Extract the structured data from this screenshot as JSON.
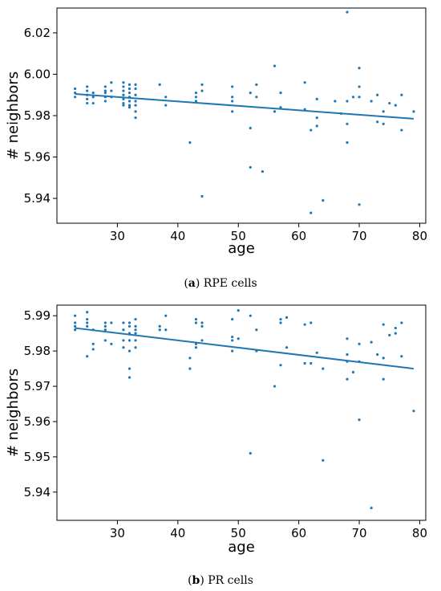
{
  "chart_data": [
    {
      "type": "scatter",
      "caption_tag": "a",
      "caption_text": "RPE cells",
      "xlabel": "age",
      "ylabel": "# neighbors",
      "xlim": [
        20,
        81
      ],
      "ylim": [
        5.928,
        6.032
      ],
      "xticks": [
        30,
        40,
        50,
        60,
        70,
        80
      ],
      "yticks": [
        5.94,
        5.96,
        5.98,
        6.0,
        6.02
      ],
      "ytick_labels": [
        "5.94",
        "5.96",
        "5.98",
        "6.00",
        "6.02"
      ],
      "color": "#1f77b4",
      "regression": {
        "x": [
          23,
          79
        ],
        "y": [
          5.9905,
          5.9785
        ]
      },
      "points": [
        [
          23,
          5.993
        ],
        [
          23,
          5.991
        ],
        [
          23,
          5.989
        ],
        [
          25,
          5.994
        ],
        [
          25,
          5.992
        ],
        [
          25,
          5.99
        ],
        [
          25,
          5.988
        ],
        [
          25,
          5.986
        ],
        [
          26,
          5.991
        ],
        [
          26,
          5.989
        ],
        [
          26,
          5.986
        ],
        [
          28,
          5.994
        ],
        [
          28,
          5.992
        ],
        [
          28,
          5.991
        ],
        [
          28,
          5.989
        ],
        [
          28,
          5.987
        ],
        [
          29,
          5.996
        ],
        [
          29,
          5.992
        ],
        [
          29,
          5.989
        ],
        [
          31,
          5.996
        ],
        [
          31,
          5.994
        ],
        [
          31,
          5.992
        ],
        [
          31,
          5.99
        ],
        [
          31,
          5.988
        ],
        [
          31,
          5.986
        ],
        [
          31,
          5.985
        ],
        [
          32,
          5.995
        ],
        [
          32,
          5.993
        ],
        [
          32,
          5.991
        ],
        [
          32,
          5.989
        ],
        [
          32,
          5.987
        ],
        [
          32,
          5.985
        ],
        [
          32,
          5.984
        ],
        [
          33,
          5.995
        ],
        [
          33,
          5.993
        ],
        [
          33,
          5.99
        ],
        [
          33,
          5.987
        ],
        [
          33,
          5.985
        ],
        [
          33,
          5.982
        ],
        [
          33,
          5.979
        ],
        [
          37,
          5.995
        ],
        [
          38,
          5.989
        ],
        [
          38,
          5.985
        ],
        [
          42,
          5.967
        ],
        [
          43,
          5.991
        ],
        [
          43,
          5.989
        ],
        [
          43,
          5.987
        ],
        [
          44,
          5.995
        ],
        [
          44,
          5.992
        ],
        [
          44,
          5.941
        ],
        [
          49,
          5.994
        ],
        [
          49,
          5.989
        ],
        [
          49,
          5.987
        ],
        [
          49,
          5.982
        ],
        [
          52,
          5.991
        ],
        [
          52,
          5.974
        ],
        [
          52,
          5.955
        ],
        [
          53,
          5.995
        ],
        [
          53,
          5.989
        ],
        [
          54,
          5.953
        ],
        [
          56,
          6.004
        ],
        [
          56,
          5.982
        ],
        [
          57,
          5.991
        ],
        [
          57,
          5.984
        ],
        [
          61,
          5.996
        ],
        [
          61,
          5.983
        ],
        [
          62,
          5.973
        ],
        [
          62,
          5.933
        ],
        [
          63,
          5.988
        ],
        [
          63,
          5.979
        ],
        [
          63,
          5.975
        ],
        [
          64,
          5.939
        ],
        [
          66,
          5.987
        ],
        [
          67,
          5.981
        ],
        [
          68,
          6.03
        ],
        [
          68,
          5.987
        ],
        [
          68,
          5.976
        ],
        [
          68,
          5.967
        ],
        [
          69,
          5.989
        ],
        [
          70,
          6.003
        ],
        [
          70,
          5.994
        ],
        [
          70,
          5.989
        ],
        [
          70,
          5.937
        ],
        [
          72,
          5.987
        ],
        [
          73,
          5.99
        ],
        [
          73,
          5.977
        ],
        [
          74,
          5.982
        ],
        [
          74,
          5.976
        ],
        [
          75,
          5.986
        ],
        [
          76,
          5.985
        ],
        [
          77,
          5.99
        ],
        [
          77,
          5.973
        ],
        [
          79,
          5.982
        ]
      ]
    },
    {
      "type": "scatter",
      "caption_tag": "b",
      "caption_text": "PR cells",
      "xlabel": "age",
      "ylabel": "# neighbors",
      "xlim": [
        20,
        81
      ],
      "ylim": [
        5.932,
        5.993
      ],
      "xticks": [
        30,
        40,
        50,
        60,
        70,
        80
      ],
      "yticks": [
        5.94,
        5.95,
        5.96,
        5.97,
        5.98,
        5.99
      ],
      "ytick_labels": [
        "5.94",
        "5.95",
        "5.96",
        "5.97",
        "5.98",
        "5.99"
      ],
      "color": "#1f77b4",
      "regression": {
        "x": [
          23,
          79
        ],
        "y": [
          5.9865,
          5.975
        ]
      },
      "points": [
        [
          23,
          5.99
        ],
        [
          23,
          5.988
        ],
        [
          23,
          5.987
        ],
        [
          23,
          5.986
        ],
        [
          25,
          5.991
        ],
        [
          25,
          5.989
        ],
        [
          25,
          5.988
        ],
        [
          25,
          5.987
        ],
        [
          25,
          5.9785
        ],
        [
          26,
          5.986
        ],
        [
          26,
          5.982
        ],
        [
          26,
          5.9805
        ],
        [
          28,
          5.988
        ],
        [
          28,
          5.987
        ],
        [
          28,
          5.986
        ],
        [
          28,
          5.983
        ],
        [
          29,
          5.988
        ],
        [
          29,
          5.982
        ],
        [
          31,
          5.988
        ],
        [
          31,
          5.986
        ],
        [
          31,
          5.983
        ],
        [
          31,
          5.981
        ],
        [
          32,
          5.988
        ],
        [
          32,
          5.987
        ],
        [
          32,
          5.985
        ],
        [
          32,
          5.983
        ],
        [
          32,
          5.98
        ],
        [
          32,
          5.975
        ],
        [
          32,
          5.9725
        ],
        [
          33,
          5.989
        ],
        [
          33,
          5.987
        ],
        [
          33,
          5.986
        ],
        [
          33,
          5.985
        ],
        [
          33,
          5.983
        ],
        [
          33,
          5.981
        ],
        [
          37,
          5.987
        ],
        [
          37,
          5.986
        ],
        [
          38,
          5.99
        ],
        [
          38,
          5.986
        ],
        [
          42,
          5.978
        ],
        [
          42,
          5.975
        ],
        [
          43,
          5.989
        ],
        [
          43,
          5.988
        ],
        [
          43,
          5.982
        ],
        [
          43,
          5.981
        ],
        [
          44,
          5.988
        ],
        [
          44,
          5.987
        ],
        [
          44,
          5.983
        ],
        [
          49,
          5.989
        ],
        [
          49,
          5.984
        ],
        [
          49,
          5.983
        ],
        [
          49,
          5.98
        ],
        [
          50,
          5.9915
        ],
        [
          50,
          5.9835
        ],
        [
          52,
          5.99
        ],
        [
          52,
          5.951
        ],
        [
          53,
          5.986
        ],
        [
          53,
          5.98
        ],
        [
          56,
          5.97
        ],
        [
          57,
          5.989
        ],
        [
          57,
          5.988
        ],
        [
          57,
          5.976
        ],
        [
          58,
          5.9895
        ],
        [
          58,
          5.981
        ],
        [
          61,
          5.9875
        ],
        [
          61,
          5.9765
        ],
        [
          62,
          5.988
        ],
        [
          62,
          5.9765
        ],
        [
          63,
          5.9795
        ],
        [
          64,
          5.975
        ],
        [
          64,
          5.949
        ],
        [
          68,
          5.9835
        ],
        [
          68,
          5.979
        ],
        [
          68,
          5.977
        ],
        [
          68,
          5.972
        ],
        [
          69,
          5.974
        ],
        [
          70,
          5.982
        ],
        [
          70,
          5.977
        ],
        [
          70,
          5.9605
        ],
        [
          72,
          5.9825
        ],
        [
          72,
          5.9355
        ],
        [
          73,
          5.979
        ],
        [
          74,
          5.9875
        ],
        [
          74,
          5.978
        ],
        [
          74,
          5.972
        ],
        [
          75,
          5.9845
        ],
        [
          76,
          5.9865
        ],
        [
          76,
          5.985
        ],
        [
          77,
          5.988
        ],
        [
          77,
          5.9785
        ],
        [
          79,
          5.963
        ]
      ]
    }
  ]
}
